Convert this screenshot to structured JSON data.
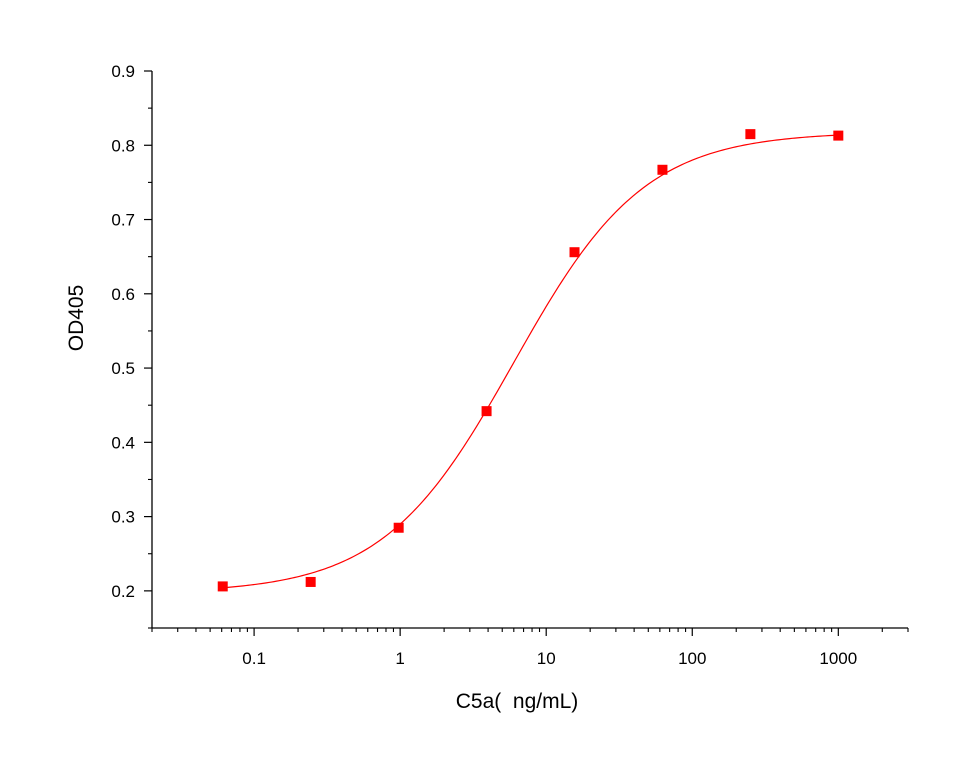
{
  "chart_data": {
    "type": "scatter",
    "xscale": "log",
    "xlabel": "C5a(  ng/mL)",
    "ylabel": "OD405",
    "xlim": [
      0.02,
      3000
    ],
    "ylim": [
      0.15,
      0.9
    ],
    "xticks": [
      {
        "value": 0.1,
        "label": "0.1"
      },
      {
        "value": 1,
        "label": "1"
      },
      {
        "value": 10,
        "label": "10"
      },
      {
        "value": 100,
        "label": "100"
      },
      {
        "value": 1000,
        "label": "1000"
      }
    ],
    "yticks": [
      {
        "value": 0.2,
        "label": "0.2"
      },
      {
        "value": 0.3,
        "label": "0.3"
      },
      {
        "value": 0.4,
        "label": "0.4"
      },
      {
        "value": 0.5,
        "label": "0.5"
      },
      {
        "value": 0.6,
        "label": "0.6"
      },
      {
        "value": 0.7,
        "label": "0.7"
      },
      {
        "value": 0.8,
        "label": "0.8"
      },
      {
        "value": 0.9,
        "label": "0.9"
      }
    ],
    "series": [
      {
        "x": [
          0.061,
          0.244,
          0.977,
          3.906,
          15.625,
          62.5,
          250,
          1000
        ],
        "y": [
          0.206,
          0.212,
          0.285,
          0.442,
          0.656,
          0.767,
          0.815,
          0.813
        ],
        "marker": "square",
        "color": "#ff0000"
      }
    ],
    "fit_curve": {
      "model": "4PL",
      "bottom": 0.197,
      "top": 0.818,
      "ec50": 6.0,
      "hill": 0.97,
      "color": "#ff0000"
    },
    "grid": false,
    "legend": "none"
  }
}
